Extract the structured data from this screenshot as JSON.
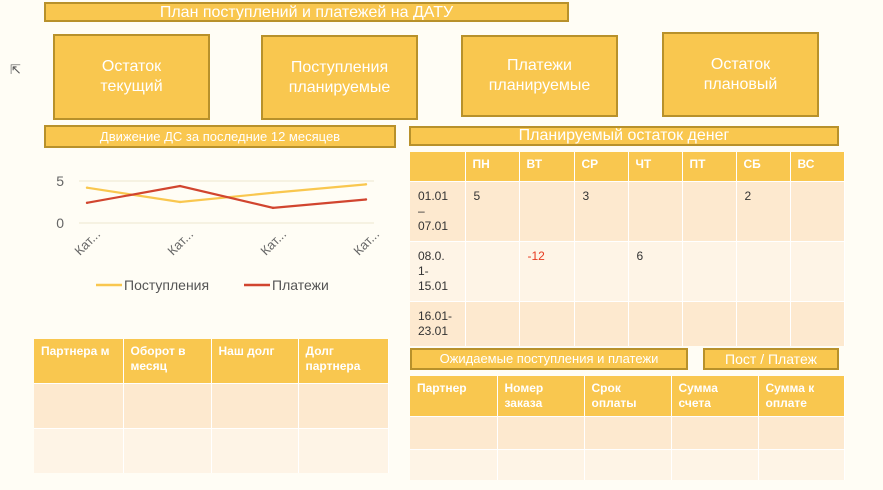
{
  "header": {
    "title": "План поступлений и платежей на ДАТУ"
  },
  "cards": [
    {
      "label": "Остаток текущий"
    },
    {
      "label": "Поступления планируемые"
    },
    {
      "label": "Платежи планируемые"
    },
    {
      "label": "Остаток плановый"
    }
  ],
  "section_titles": {
    "movement": "Движение ДС за последние 12 месяцев",
    "planned_balance": "Планируемый остаток денег",
    "expected": "Ожидаемые поступления и платежи",
    "toggle": "Пост / Платеж"
  },
  "chart_data": {
    "type": "line",
    "categories": [
      "Кат...",
      "Кат...",
      "Кат...",
      "Кат..."
    ],
    "series": [
      {
        "name": "Поступления",
        "values": [
          4.2,
          2.5,
          3.6,
          4.6
        ],
        "color": "#f9c74f"
      },
      {
        "name": "Платежи",
        "values": [
          2.4,
          4.4,
          1.8,
          2.8
        ],
        "color": "#d1452f"
      }
    ],
    "yticks": [
      "5",
      "0"
    ],
    "ylim": [
      0,
      5
    ],
    "legend": "bottom",
    "grid": true
  },
  "partners_table": {
    "headers": [
      "Партнера м",
      "Оборот в месяц",
      "Наш долг",
      "Долг партнера"
    ],
    "rows": [
      [
        "",
        "",
        "",
        ""
      ],
      [
        "",
        "",
        "",
        ""
      ]
    ]
  },
  "week_table": {
    "headers": [
      "",
      "ПН",
      "ВТ",
      "СР",
      "ЧТ",
      "ПТ",
      "СБ",
      "ВС"
    ],
    "rows": [
      [
        "01.01 – 07.01",
        "5",
        "",
        "3",
        "",
        "",
        "2",
        ""
      ],
      [
        "08.0. 1- 15.01",
        "",
        "-12",
        "",
        "6",
        "",
        "",
        ""
      ],
      [
        "16.01- 23.01",
        "",
        "",
        "",
        "",
        "",
        "",
        ""
      ]
    ]
  },
  "expected_table": {
    "headers": [
      "Партнер",
      "Номер заказа",
      "Срок оплаты",
      "Сумма счета",
      "Сумма к оплате"
    ],
    "rows": [
      [
        "",
        "",
        "",
        "",
        ""
      ],
      [
        "",
        "",
        "",
        "",
        ""
      ]
    ]
  }
}
